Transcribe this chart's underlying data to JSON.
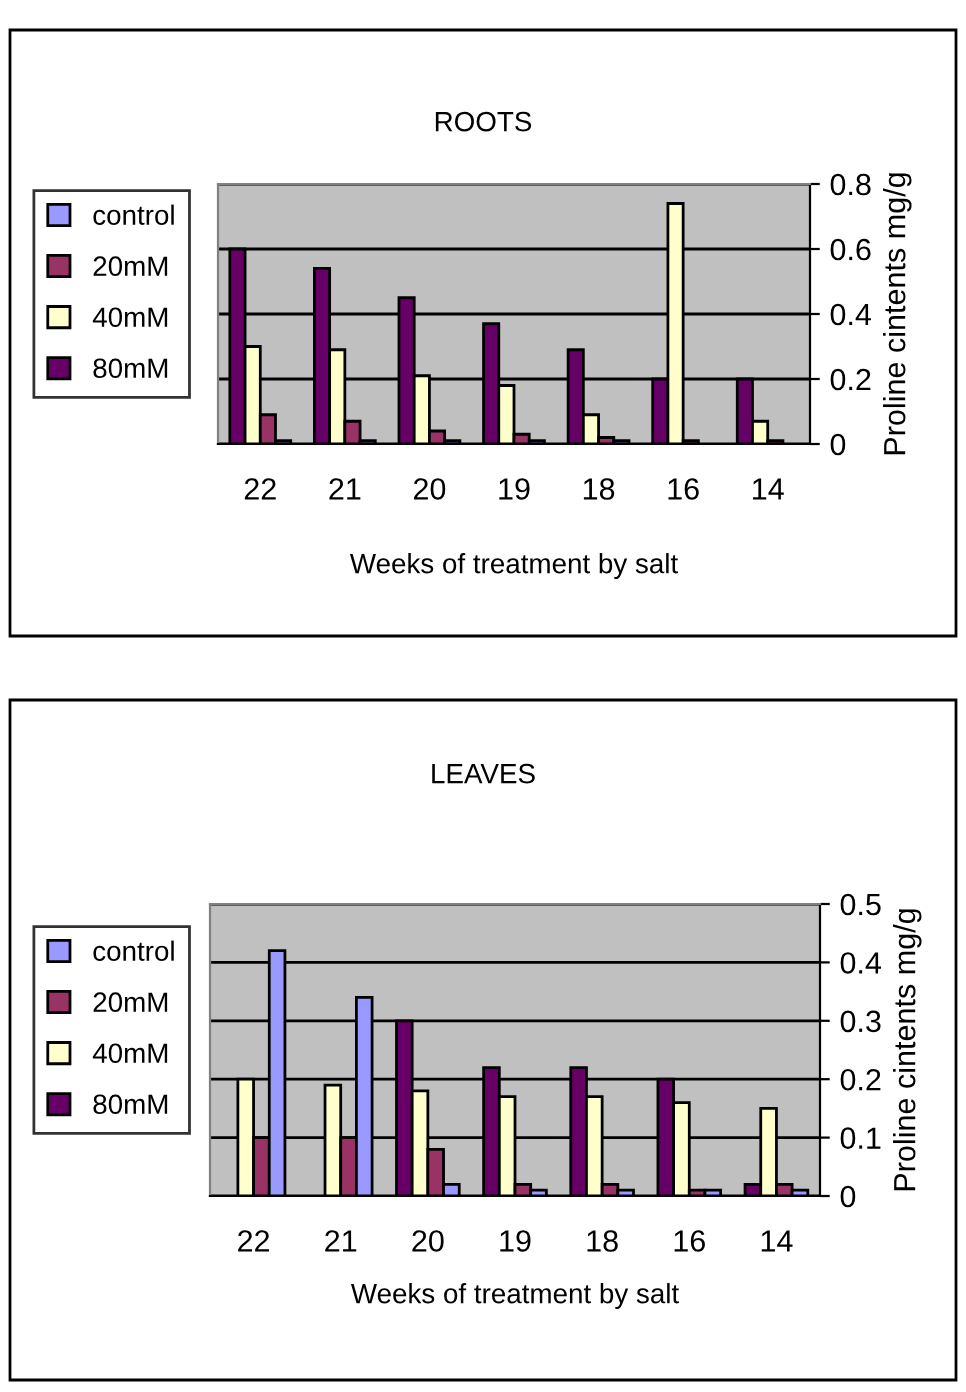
{
  "chart_data": [
    {
      "type": "bar",
      "title": "ROOTS",
      "xlabel": "Weeks of treatment by salt",
      "ylabel": "Proline cintents mg/g",
      "categories": [
        "22",
        "21",
        "20",
        "19",
        "18",
        "16",
        "14"
      ],
      "ylim": [
        0,
        0.8
      ],
      "yticks": [
        0,
        0.2,
        0.4,
        0.6,
        0.8
      ],
      "grid": "y",
      "legend": "left",
      "series": [
        {
          "name": "80mM",
          "color": "#660066",
          "values": [
            0.6,
            0.54,
            0.45,
            0.37,
            0.29,
            0.2,
            0.2
          ]
        },
        {
          "name": "40mM",
          "color": "#ffffcc",
          "values": [
            0.3,
            0.29,
            0.21,
            0.18,
            0.09,
            0.74,
            0.07
          ]
        },
        {
          "name": "20mM",
          "color": "#993366",
          "values": [
            0.09,
            0.07,
            0.04,
            0.03,
            0.02,
            0.01,
            0.01
          ]
        },
        {
          "name": "control",
          "color": "#9999ff",
          "values": [
            0.01,
            0.01,
            0.01,
            0.01,
            0.01,
            null,
            null
          ]
        }
      ]
    },
    {
      "type": "bar",
      "title": "LEAVES",
      "xlabel": "Weeks of treatment by salt",
      "ylabel": "Proline cintents mg/g",
      "categories": [
        "22",
        "21",
        "20",
        "19",
        "18",
        "16",
        "14"
      ],
      "ylim": [
        0,
        0.5
      ],
      "yticks": [
        0,
        0.1,
        0.2,
        0.3,
        0.4,
        0.5
      ],
      "grid": "y",
      "legend": "left",
      "series": [
        {
          "name": "80mM",
          "color": "#660066",
          "values": [
            null,
            null,
            0.3,
            0.22,
            0.22,
            0.2,
            0.02
          ]
        },
        {
          "name": "40mM",
          "color": "#ffffcc",
          "values": [
            0.2,
            0.19,
            0.18,
            0.17,
            0.17,
            0.16,
            0.15
          ]
        },
        {
          "name": "20mM",
          "color": "#993366",
          "values": [
            0.1,
            0.1,
            0.08,
            0.02,
            0.02,
            0.01,
            0.02
          ]
        },
        {
          "name": "control",
          "color": "#9999ff",
          "values": [
            0.42,
            0.34,
            0.02,
            0.01,
            0.01,
            0.01,
            0.01
          ]
        }
      ]
    }
  ]
}
